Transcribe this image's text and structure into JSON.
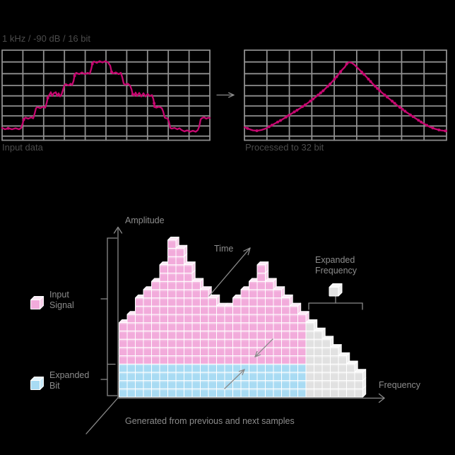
{
  "colors": {
    "background": "#000000",
    "grid": "#8f8f8f",
    "line_gray": "#8a8a8a",
    "waveform": "#c70770",
    "title_text": "#4c4c4c",
    "label_text": "#8c8c8c",
    "cube_stroke": "#ffffff",
    "pink": {
      "front": "#f2abdb",
      "top": "#fce9f6",
      "side": "#f8cfea"
    },
    "blue": {
      "front": "#a8dbf3",
      "top": "#e2f3fc",
      "side": "#c6e8f8"
    },
    "gray": {
      "front": "#e1e1e1",
      "top": "#f8f8f8",
      "side": "#ededed"
    }
  },
  "top": {
    "title": "1 kHz / -90 dB / 16 bit",
    "left_plot": {
      "caption": "Input data"
    },
    "right_plot": {
      "caption": "Processed to 32 bit"
    }
  },
  "diagram": {
    "amplitude_label": "Amplitude",
    "time_label": "Time",
    "frequency_label": "Frequency",
    "expanded_frequency_line1": "Expanded",
    "expanded_frequency_line2": "Frequency",
    "caption": "Generated from previous and next samples",
    "legend": {
      "input_signal_line1": "Input",
      "input_signal_line2": "Signal",
      "expanded_bit_line1": "Expanded",
      "expanded_bit_line2": "Bit"
    }
  },
  "chart_data": [
    {
      "type": "line",
      "title": "Input data",
      "note": "16-bit quantized 1 kHz sine at -90 dB, stepped waveform",
      "points": [
        [
          0,
          110
        ],
        [
          4,
          112
        ],
        [
          9,
          110.5
        ],
        [
          14,
          112
        ],
        [
          19,
          110.5
        ],
        [
          24,
          112
        ],
        [
          27,
          110
        ],
        [
          29,
          104
        ],
        [
          31,
          97
        ],
        [
          33,
          95.5
        ],
        [
          37,
          97
        ],
        [
          41,
          95
        ],
        [
          44,
          96.5
        ],
        [
          46,
          90
        ],
        [
          48,
          82
        ],
        [
          50,
          80.5
        ],
        [
          54,
          82
        ],
        [
          58,
          80
        ],
        [
          61,
          81.5
        ],
        [
          63,
          75
        ],
        [
          65,
          66
        ],
        [
          67,
          63
        ],
        [
          69,
          59.5
        ],
        [
          71,
          65
        ],
        [
          73,
          61
        ],
        [
          76,
          59.5
        ],
        [
          78,
          65
        ],
        [
          80,
          61
        ],
        [
          82,
          65.5
        ],
        [
          84,
          63
        ],
        [
          86,
          57
        ],
        [
          88,
          50
        ],
        [
          90,
          48
        ],
        [
          94,
          50
        ],
        [
          97,
          47.5
        ],
        [
          99,
          49.5
        ],
        [
          101,
          44
        ],
        [
          103,
          34
        ],
        [
          105,
          32
        ],
        [
          109,
          34
        ],
        [
          113,
          31.5
        ],
        [
          117,
          34
        ],
        [
          121,
          32
        ],
        [
          124,
          33.5
        ],
        [
          126,
          27
        ],
        [
          128,
          18
        ],
        [
          130,
          16
        ],
        [
          134,
          18
        ],
        [
          138,
          15.5
        ],
        [
          142,
          17.5
        ],
        [
          146,
          15.5
        ],
        [
          150,
          17.5
        ],
        [
          153,
          22
        ],
        [
          155,
          31
        ],
        [
          157,
          33
        ],
        [
          161,
          31.5
        ],
        [
          165,
          34
        ],
        [
          168,
          32
        ],
        [
          170,
          38
        ],
        [
          172,
          47
        ],
        [
          174,
          49
        ],
        [
          178,
          47.5
        ],
        [
          181,
          50
        ],
        [
          183,
          55
        ],
        [
          185,
          63
        ],
        [
          187,
          64.5
        ],
        [
          189,
          60
        ],
        [
          191,
          65
        ],
        [
          194,
          60.5
        ],
        [
          197,
          65.5
        ],
        [
          200,
          61
        ],
        [
          203,
          65.5
        ],
        [
          206,
          62
        ],
        [
          209,
          65
        ],
        [
          212,
          63.5
        ],
        [
          214,
          69
        ],
        [
          216,
          80
        ],
        [
          218,
          81.5
        ],
        [
          222,
          80
        ],
        [
          226,
          82
        ],
        [
          228,
          87
        ],
        [
          230,
          95
        ],
        [
          231,
          96
        ],
        [
          234,
          96.5
        ],
        [
          236,
          101
        ],
        [
          238,
          110
        ],
        [
          240,
          111
        ],
        [
          244,
          110
        ],
        [
          248,
          112
        ],
        [
          251,
          110.5
        ],
        [
          254,
          113
        ],
        [
          258,
          115
        ],
        [
          262,
          113.5
        ],
        [
          266,
          115.5
        ],
        [
          270,
          114
        ],
        [
          274,
          115.5
        ],
        [
          277,
          113
        ],
        [
          279,
          108
        ],
        [
          281,
          98
        ],
        [
          283,
          96
        ],
        [
          286,
          95
        ],
        [
          289,
          97
        ],
        [
          292,
          95.5
        ],
        [
          294,
          96
        ]
      ]
    },
    {
      "type": "line",
      "title": "Processed to 32 bit",
      "note": "smooth interpolated waveform with sample dots",
      "points": [
        [
          0,
          109
        ],
        [
          6,
          111.5
        ],
        [
          12,
          113.5
        ],
        [
          18,
          114
        ],
        [
          24,
          113
        ],
        [
          30,
          111
        ],
        [
          40,
          105.5
        ],
        [
          52,
          99
        ],
        [
          64,
          91.5
        ],
        [
          76,
          84
        ],
        [
          88,
          76
        ],
        [
          100,
          67
        ],
        [
          112,
          57
        ],
        [
          122,
          47
        ],
        [
          131,
          37
        ],
        [
          138,
          28
        ],
        [
          142,
          24
        ],
        [
          145,
          19
        ],
        [
          148,
          17
        ],
        [
          152,
          18
        ],
        [
          156,
          21
        ],
        [
          162,
          27
        ],
        [
          170,
          35
        ],
        [
          180,
          46
        ],
        [
          192,
          58
        ],
        [
          204,
          68
        ],
        [
          216,
          78
        ],
        [
          228,
          87
        ],
        [
          240,
          95
        ],
        [
          252,
          103
        ],
        [
          262,
          108.5
        ],
        [
          270,
          111.5
        ],
        [
          278,
          113.5
        ],
        [
          286,
          114.5
        ]
      ]
    },
    {
      "type": "bar",
      "title": "Amplitude / Time / Frequency cube diagram",
      "series": [
        {
          "name": "Input Signal",
          "values": [
            9,
            10,
            12,
            13,
            14,
            16,
            19,
            18,
            16,
            14,
            13,
            12,
            11,
            11,
            12,
            13,
            14,
            16,
            14,
            13,
            12,
            11,
            10
          ]
        },
        {
          "name": "Expanded Frequency",
          "values": [
            9,
            8,
            7,
            6,
            5,
            4,
            3
          ]
        },
        {
          "name": "Expanded Bit",
          "base_rows": 4
        }
      ]
    }
  ]
}
